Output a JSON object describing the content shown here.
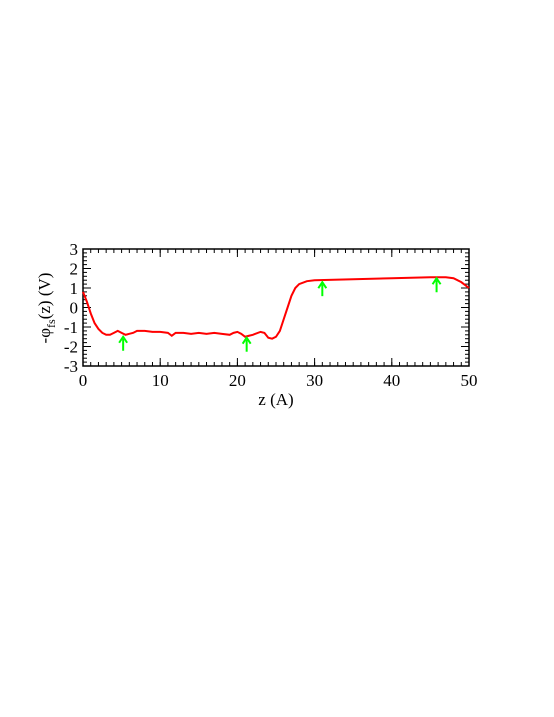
{
  "chart_data": {
    "type": "line",
    "xlabel": "z (A)",
    "ylabel": {
      "text": "-φ",
      "subscript": "fs",
      "suffix": "(z) (V)"
    },
    "x": [
      0,
      0.5,
      1,
      1.5,
      2,
      2.5,
      3,
      3.5,
      4,
      4.5,
      5,
      5.5,
      6,
      6.5,
      7,
      8,
      9,
      10,
      11,
      11.5,
      12,
      13,
      14,
      15,
      16,
      17,
      18,
      19,
      19.5,
      20,
      20.5,
      21,
      21.5,
      22,
      23,
      23.5,
      24,
      24.5,
      25,
      25.5,
      26,
      26.5,
      27,
      27.5,
      28,
      29,
      30,
      35,
      40,
      45,
      47,
      48,
      49,
      50
    ],
    "series": [
      {
        "color": "#ff0000",
        "values": [
          0.8,
          0.3,
          -0.3,
          -0.8,
          -1.1,
          -1.3,
          -1.4,
          -1.4,
          -1.3,
          -1.2,
          -1.3,
          -1.4,
          -1.35,
          -1.3,
          -1.2,
          -1.2,
          -1.25,
          -1.25,
          -1.3,
          -1.45,
          -1.3,
          -1.3,
          -1.35,
          -1.3,
          -1.35,
          -1.3,
          -1.35,
          -1.4,
          -1.3,
          -1.25,
          -1.35,
          -1.5,
          -1.45,
          -1.4,
          -1.25,
          -1.3,
          -1.55,
          -1.6,
          -1.5,
          -1.2,
          -0.6,
          0,
          0.6,
          1.0,
          1.2,
          1.35,
          1.4,
          1.45,
          1.5,
          1.55,
          1.55,
          1.5,
          1.3,
          1.0
        ]
      }
    ],
    "arrows": {
      "color": "#00ff00",
      "x": [
        5.2,
        21.2,
        31,
        45.8
      ],
      "y": [
        -1.5,
        -1.55,
        1.3,
        1.5
      ]
    },
    "xlim": [
      0,
      50
    ],
    "xticks": [
      0,
      10,
      20,
      30,
      40,
      50
    ],
    "ylim": [
      -3,
      3
    ],
    "yticks": [
      -3,
      -2,
      -1,
      0,
      1,
      2,
      3
    ],
    "minor_ticks": {
      "x": 1,
      "y": 0.2
    }
  }
}
